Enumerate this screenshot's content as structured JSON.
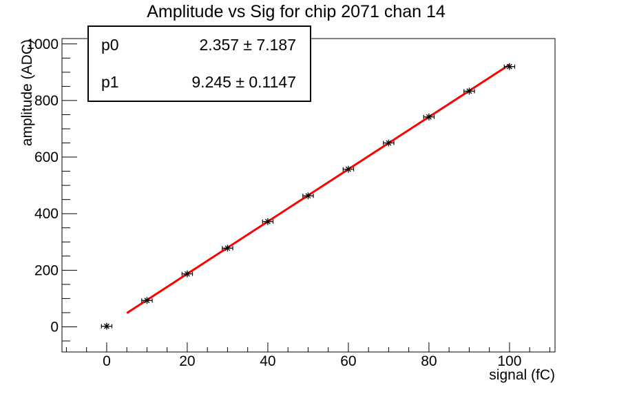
{
  "title": "Amplitude vs Sig for chip 2071 chan 14",
  "stats_box": {
    "rows": [
      {
        "name": "p0",
        "value": "2.357 ± 7.187"
      },
      {
        "name": "p1",
        "value": "9.245 ± 0.1147"
      }
    ]
  },
  "chart_data": {
    "type": "scatter",
    "title": "Amplitude vs Sig for chip 2071 chan 14",
    "xlabel": "signal (fC)",
    "ylabel": "amplitude (ADC)",
    "x": [
      0,
      10,
      20,
      30,
      40,
      50,
      60,
      70,
      80,
      90,
      100
    ],
    "y": [
      2,
      93,
      187,
      278,
      372,
      463,
      557,
      650,
      742,
      833,
      920
    ],
    "x_error": 1.3,
    "marker": "asterisk",
    "marker_color": "#000000",
    "fit": {
      "model": "pol1",
      "p0": 2.357,
      "p0_err": 7.187,
      "p1": 9.245,
      "p1_err": 0.1147,
      "x_range": [
        5,
        100
      ],
      "color": "#ff0000"
    },
    "xlim": [
      -11.1,
      111.3
    ],
    "ylim": [
      -89,
      1019
    ],
    "x_ticks": [
      0,
      20,
      40,
      60,
      80,
      100
    ],
    "y_ticks": [
      0,
      200,
      400,
      600,
      800,
      1000
    ],
    "x_minor_step": 5,
    "y_minor_step": 50,
    "grid": false,
    "legend": "none",
    "axis_color": "#000000",
    "background": "#ffffff"
  }
}
